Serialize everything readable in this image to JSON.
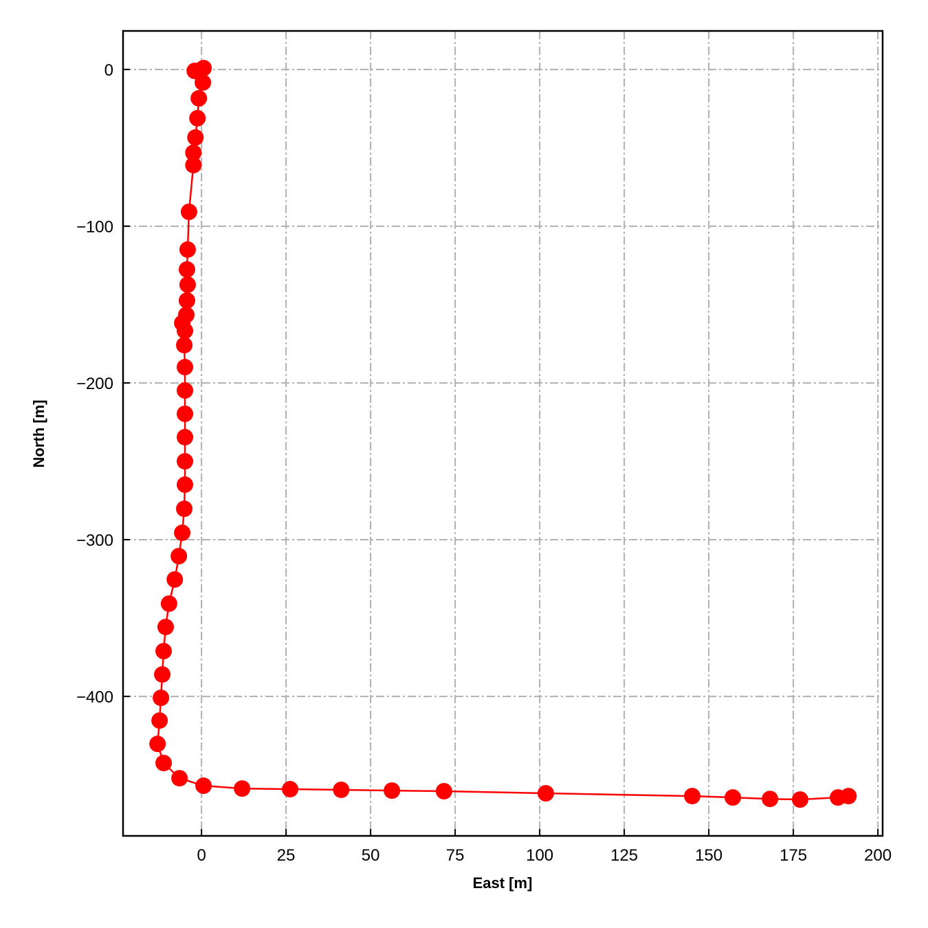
{
  "chart_data": {
    "type": "line",
    "xlabel": "East [m]",
    "ylabel": "North [m]",
    "color": "#ff0000",
    "marker": true,
    "grid": true,
    "x": [
      -2.0,
      0.6,
      0.4,
      -0.8,
      -1.2,
      -1.8,
      -2.4,
      -2.4,
      -3.7,
      -4.1,
      -4.3,
      -4.1,
      -4.3,
      -4.5,
      -5.7,
      -4.9,
      -5.1,
      -4.9,
      -4.9,
      -4.9,
      -4.9,
      -4.9,
      -4.9,
      -5.1,
      -5.7,
      -6.7,
      -7.9,
      -9.6,
      -10.6,
      -11.2,
      -11.6,
      -12.0,
      -12.4,
      -13.0,
      -11.2,
      -6.5,
      0.6,
      12.0,
      26.2,
      41.3,
      56.3,
      71.7,
      101.8,
      145.1,
      157.1,
      168.1,
      177.0,
      188.2,
      191.3
    ],
    "values": [
      -0.9,
      0.9,
      -8.3,
      -18.4,
      -31.1,
      -43.4,
      -53.1,
      -61.0,
      -90.8,
      -114.9,
      -127.6,
      -137.3,
      -147.4,
      -156.6,
      -161.8,
      -166.7,
      -175.9,
      -189.9,
      -204.8,
      -219.7,
      -234.6,
      -250.0,
      -264.9,
      -280.3,
      -295.6,
      -310.5,
      -325.4,
      -340.8,
      -355.7,
      -371.1,
      -386.0,
      -400.9,
      -415.4,
      -430.3,
      -442.5,
      -452.2,
      -457.0,
      -458.8,
      -459.2,
      -459.6,
      -460.1,
      -460.5,
      -461.8,
      -463.6,
      -464.5,
      -465.4,
      -465.8,
      -464.5,
      -463.6
    ],
    "xlim": [
      -23.2,
      201.4
    ],
    "ylim": [
      -489.0,
      24.6
    ],
    "xticks": [
      0,
      25,
      50,
      75,
      100,
      125,
      150,
      175,
      200
    ],
    "yticks": [
      {
        "value": -400,
        "label": "−400"
      },
      {
        "value": -300,
        "label": "−300"
      },
      {
        "value": -200,
        "label": "−200"
      },
      {
        "value": -100,
        "label": "−100"
      },
      0
    ]
  }
}
